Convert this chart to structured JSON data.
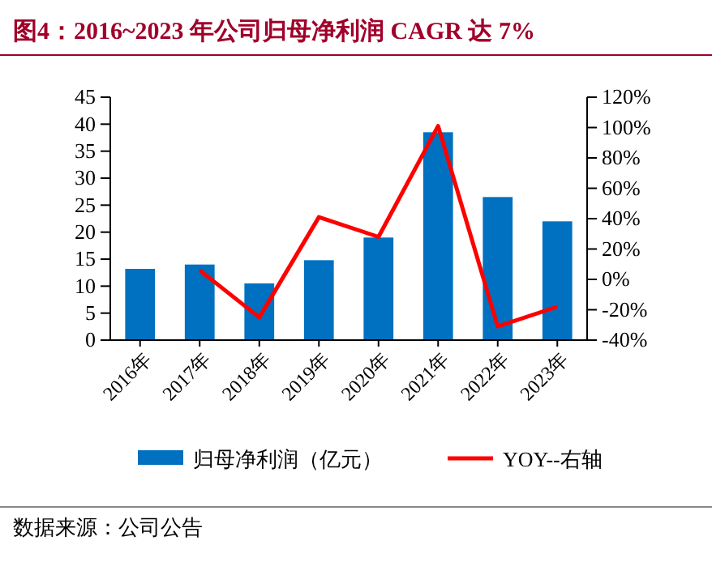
{
  "chart_data": {
    "type": "bar",
    "title": "图4：2016~2023 年公司归母净利润 CAGR 达 7%",
    "categories": [
      "2016年",
      "2017年",
      "2018年",
      "2019年",
      "2020年",
      "2021年",
      "2022年",
      "2023年"
    ],
    "series": [
      {
        "name": "归母净利润（亿元）",
        "color": "#0070c0",
        "values": [
          13.2,
          14,
          10.5,
          14.8,
          19,
          38.5,
          26.5,
          22
        ]
      },
      {
        "name": "YOY--右轴",
        "type": "line",
        "axis": "y2",
        "color": "#ff0000",
        "values": [
          null,
          6,
          -25,
          41,
          28,
          101,
          -31,
          -18
        ]
      }
    ],
    "ylim": [
      0,
      45
    ],
    "yticks": [
      0,
      5,
      10,
      15,
      20,
      25,
      30,
      35,
      40,
      45
    ],
    "y2lim": [
      -40,
      120
    ],
    "y2ticks": [
      {
        "value": -40,
        "label": "-40%"
      },
      {
        "value": -20,
        "label": "-20%"
      },
      {
        "value": 0,
        "label": "0%"
      },
      {
        "value": 20,
        "label": "20%"
      },
      {
        "value": 40,
        "label": "40%"
      },
      {
        "value": 60,
        "label": "60%"
      },
      {
        "value": 80,
        "label": "80%"
      },
      {
        "value": 100,
        "label": "100%"
      },
      {
        "value": 120,
        "label": "120%"
      }
    ],
    "grid": false,
    "legend": "bottom",
    "marker": "none",
    "line_style": "solid",
    "annotations": [
      "数据来源：公司公告"
    ]
  }
}
